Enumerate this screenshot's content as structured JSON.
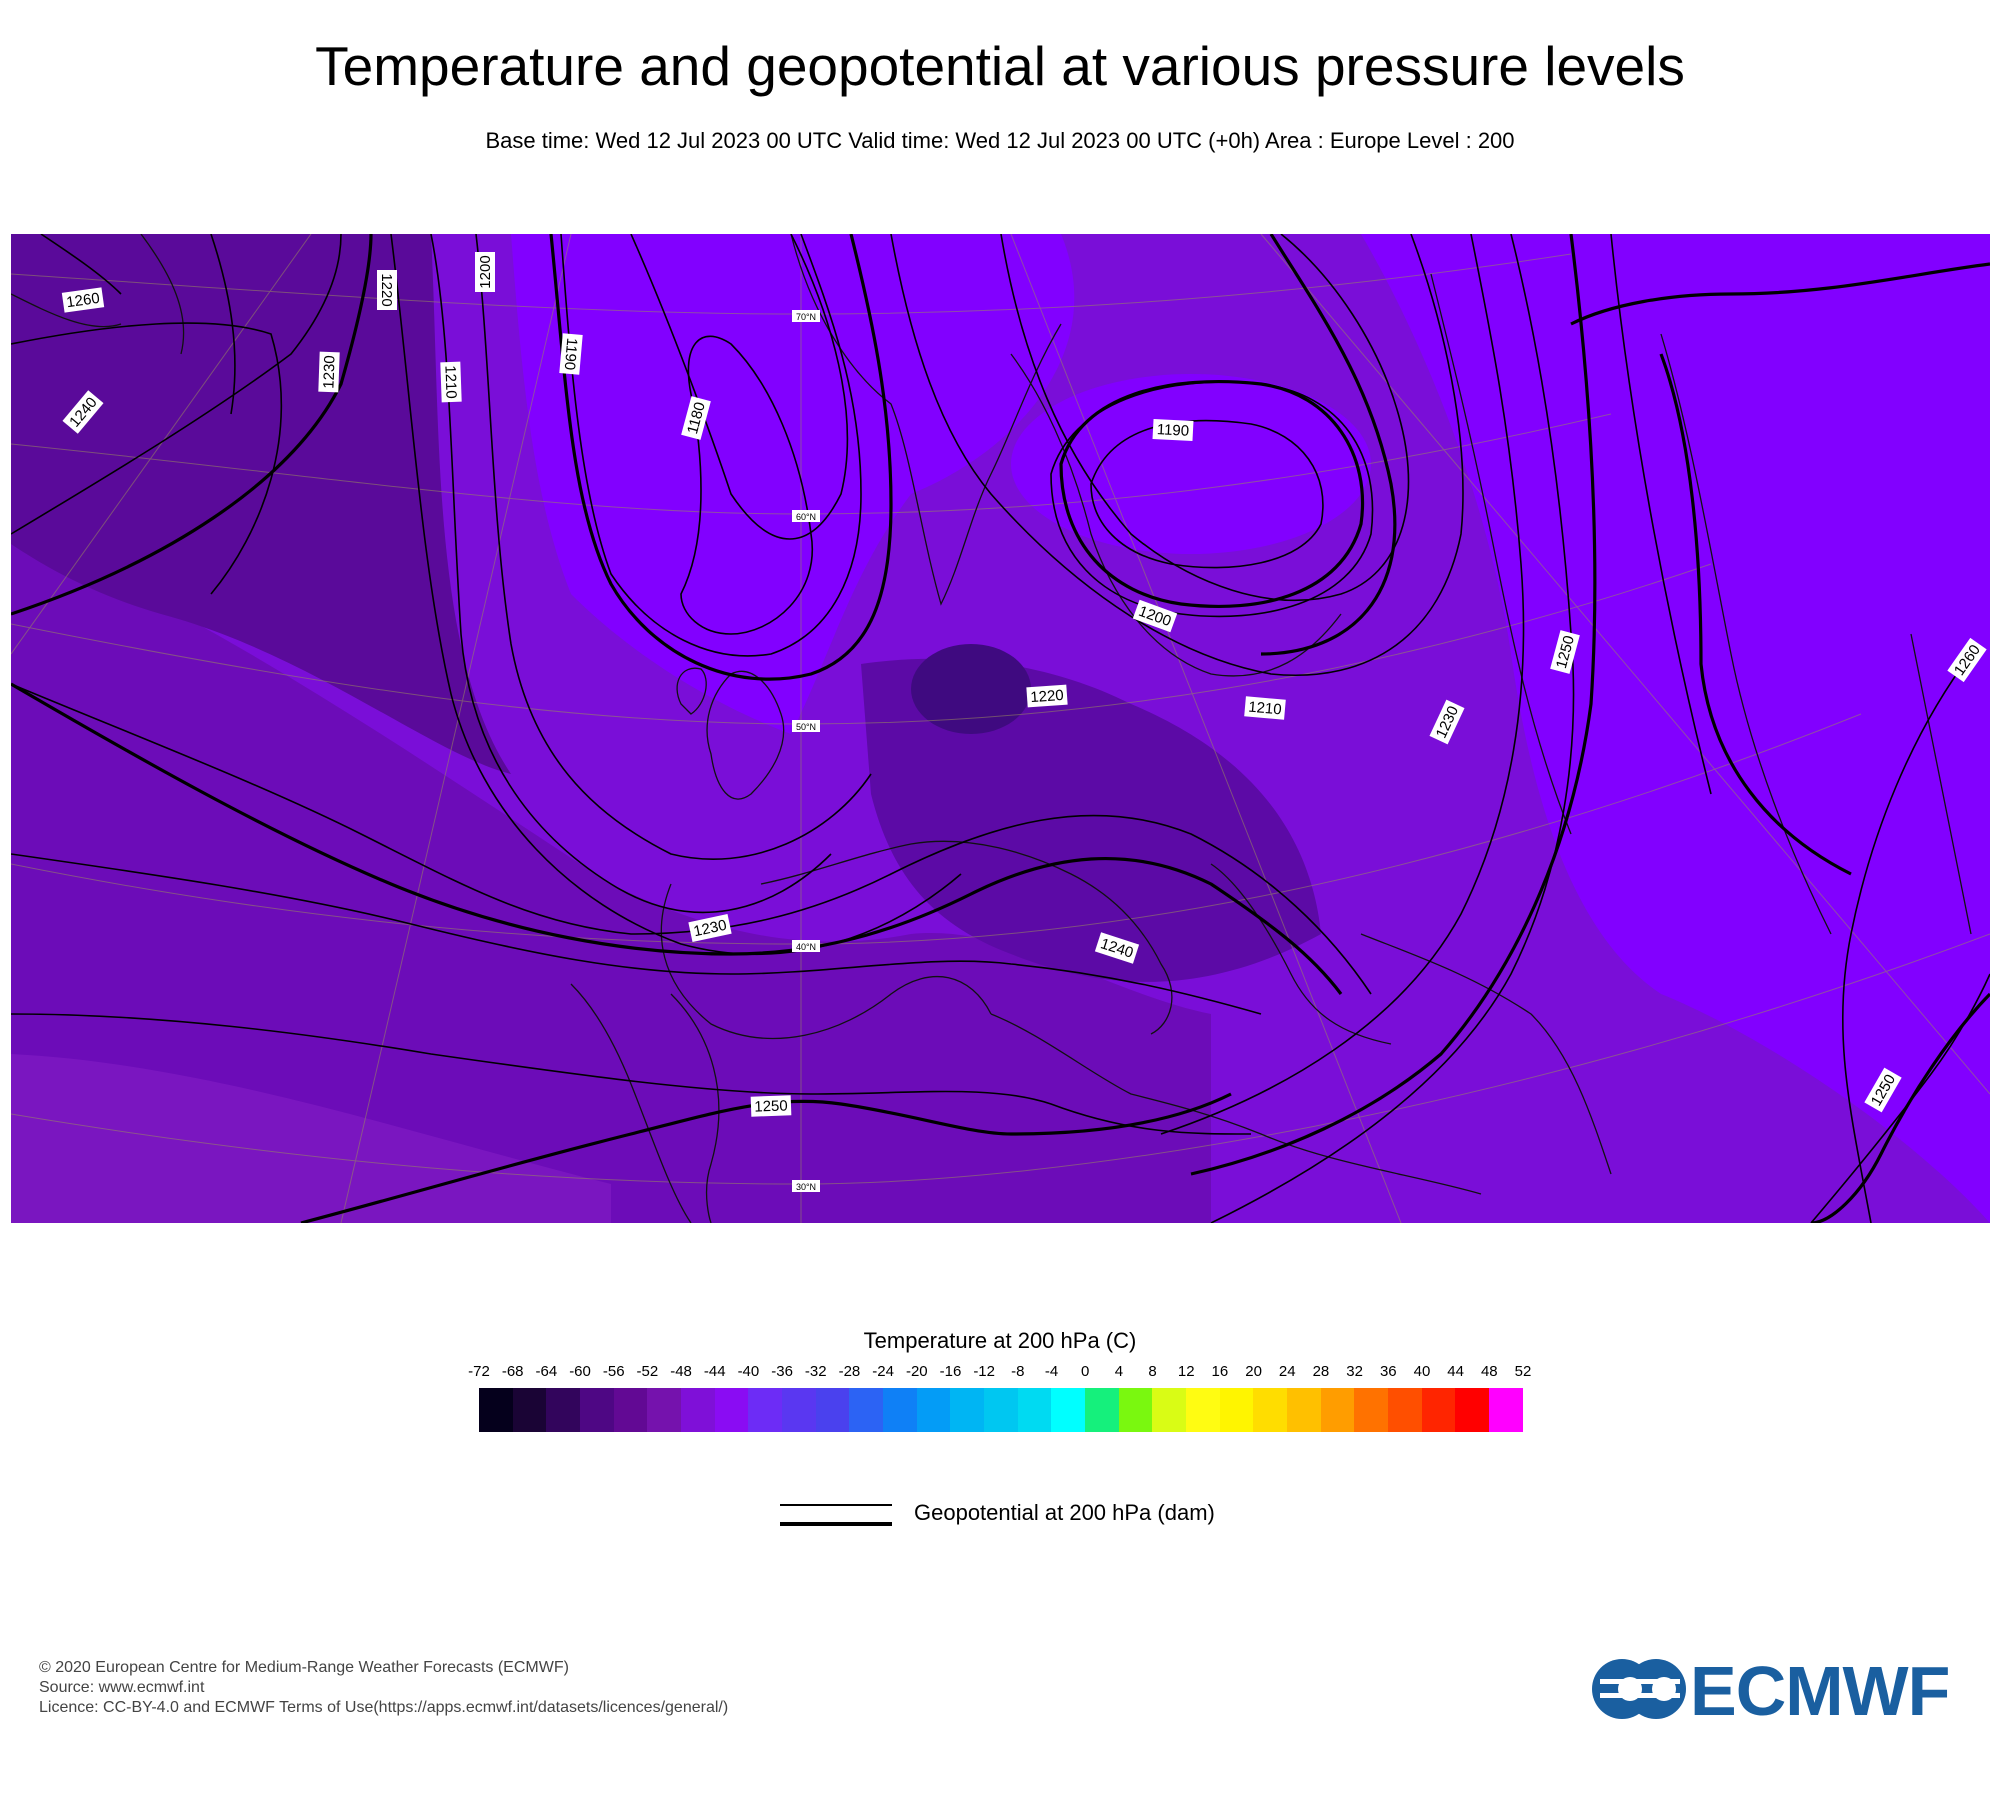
{
  "header": {
    "title": "Temperature and geopotential at various pressure levels",
    "subtitle": "Base time: Wed 12 Jul 2023 00 UTC Valid time: Wed 12 Jul 2023 00 UTC (+0h) Area : Europe Level : 200"
  },
  "map": {
    "latitude_labels": [
      "70°N",
      "60°N",
      "50°N",
      "40°N",
      "30°N"
    ],
    "contour_labels": [
      "1260",
      "1240",
      "1230",
      "1220",
      "1210",
      "1200",
      "1190",
      "1180",
      "1190",
      "1200",
      "1220",
      "1210",
      "1250",
      "1260",
      "1230",
      "1230",
      "1240",
      "1250",
      "1250"
    ],
    "fill_color": "#7a00e6"
  },
  "legend": {
    "title": "Temperature at 200 hPa (C)",
    "ticks": [
      "-72",
      "-68",
      "-64",
      "-60",
      "-56",
      "-52",
      "-48",
      "-44",
      "-40",
      "-36",
      "-32",
      "-28",
      "-24",
      "-20",
      "-16",
      "-12",
      "-8",
      "-4",
      "0",
      "4",
      "8",
      "12",
      "16",
      "20",
      "24",
      "28",
      "32",
      "36",
      "40",
      "44",
      "48",
      "52"
    ],
    "colors": [
      "#05001c",
      "#1a0435",
      "#32055c",
      "#4e0784",
      "#620994",
      "#7512ad",
      "#7f10d8",
      "#8a0cf3",
      "#6d2cf6",
      "#5a37f1",
      "#4a41ee",
      "#2c63f4",
      "#0f80f6",
      "#049cf6",
      "#00b5f3",
      "#00c7f1",
      "#00daf2",
      "#00ffff",
      "#15f07c",
      "#7af80f",
      "#d9fc15",
      "#fffc12",
      "#fff500",
      "#ffdd00",
      "#ffc000",
      "#ff9d00",
      "#ff7200",
      "#ff4f00",
      "#ff2500",
      "#ff0000",
      "#ff00ff"
    ],
    "geopotential_label": "Geopotential at 200 hPa (dam)"
  },
  "footer": {
    "copyright": "© 2020 European Centre for Medium-Range Weather Forecasts (ECMWF)",
    "source": "Source: www.ecmwf.int",
    "licence": "Licence: CC-BY-4.0 and ECMWF Terms of Use(https://apps.ecmwf.int/datasets/licences/general/)",
    "logo_text": "ECMWF",
    "logo_color": "#1a5fa0"
  }
}
